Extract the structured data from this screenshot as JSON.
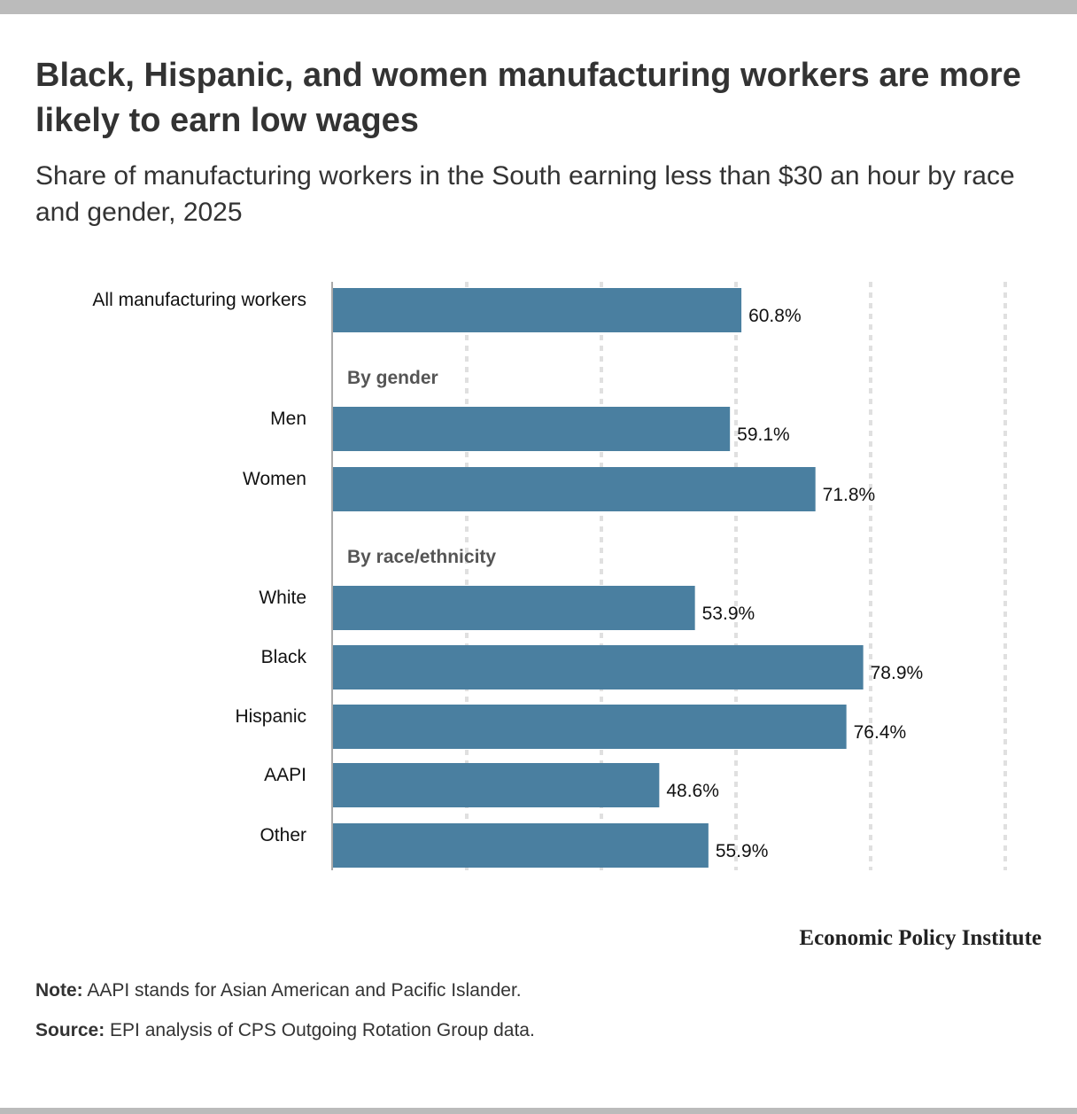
{
  "title": "Black, Hispanic, and women manufacturing workers are more likely to earn low wages",
  "subtitle": "Share of manufacturing workers in the South earning less than $30 an hour by race and gender, 2025",
  "brand": "Economic Policy Institute",
  "note": {
    "label": "Note:",
    "text": " AAPI stands for Asian American and Pacific Islander."
  },
  "source": {
    "label": "Source:",
    "text": " EPI analysis of CPS Outgoing Rotation Group data."
  },
  "colors": {
    "bar": "#4a7fa0",
    "grid": "#e0e0e0",
    "axis": "#aaaaaa"
  },
  "chart_data": {
    "type": "bar",
    "orientation": "horizontal",
    "title": "Black, Hispanic, and women manufacturing workers are more likely to earn low wages",
    "subtitle": "Share of manufacturing workers in the South earning less than $30 an hour by race and gender, 2025",
    "xlabel": "",
    "ylabel": "",
    "xlim": [
      0,
      100
    ],
    "gridlines": [
      0,
      20,
      40,
      60,
      80,
      100
    ],
    "grid": true,
    "value_format": "percent",
    "rows": [
      {
        "type": "bar",
        "label": "All manufacturing workers",
        "value": 60.8,
        "display": "60.8%"
      },
      {
        "type": "group",
        "label": "By gender"
      },
      {
        "type": "bar",
        "label": "Men",
        "value": 59.1,
        "display": "59.1%"
      },
      {
        "type": "bar",
        "label": "Women",
        "value": 71.8,
        "display": "71.8%"
      },
      {
        "type": "group",
        "label": "By race/ethnicity"
      },
      {
        "type": "bar",
        "label": "White",
        "value": 53.9,
        "display": "53.9%"
      },
      {
        "type": "bar",
        "label": "Black",
        "value": 78.9,
        "display": "78.9%"
      },
      {
        "type": "bar",
        "label": "Hispanic",
        "value": 76.4,
        "display": "76.4%"
      },
      {
        "type": "bar",
        "label": "AAPI",
        "value": 48.6,
        "display": "48.6%"
      },
      {
        "type": "bar",
        "label": "Other",
        "value": 55.9,
        "display": "55.9%"
      }
    ]
  }
}
